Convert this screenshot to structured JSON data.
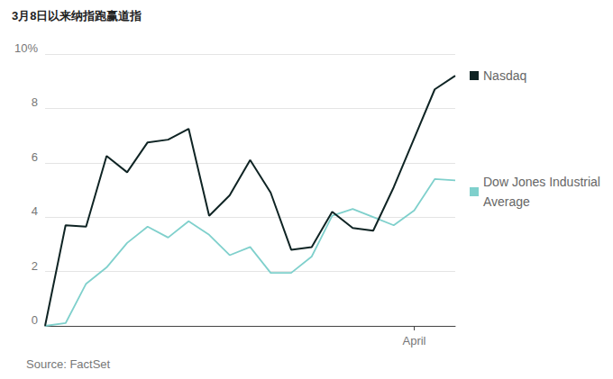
{
  "chart_data": {
    "type": "line",
    "title": "3月8日以来纳指跑赢道指",
    "source": "Source: FactSet",
    "categories": [
      null,
      null,
      null,
      null,
      null,
      null,
      null,
      null,
      null,
      null,
      null,
      null,
      null,
      null,
      null,
      null,
      null,
      null,
      "April",
      null,
      null
    ],
    "series": [
      {
        "name": "Nasdaq",
        "color": "#0f2424",
        "values": [
          0,
          3.7,
          3.65,
          6.25,
          5.65,
          6.75,
          6.85,
          7.25,
          4.05,
          4.8,
          6.1,
          4.9,
          2.8,
          2.9,
          4.2,
          3.6,
          3.5,
          5.1,
          6.9,
          8.7,
          9.2
        ]
      },
      {
        "name": "Dow Jones Industrial Average",
        "color": "#7fd0cc",
        "values": [
          0,
          0.1,
          1.55,
          2.15,
          3.05,
          3.65,
          3.25,
          3.85,
          3.35,
          2.6,
          2.9,
          1.95,
          1.95,
          2.55,
          4.05,
          4.3,
          4.0,
          3.7,
          4.25,
          5.4,
          5.35
        ]
      }
    ],
    "ylim": [
      0,
      10
    ],
    "yticks": [
      0,
      2,
      4,
      6,
      8,
      {
        "value": 10,
        "label": "10%"
      }
    ],
    "grid": true,
    "legend": "right"
  }
}
